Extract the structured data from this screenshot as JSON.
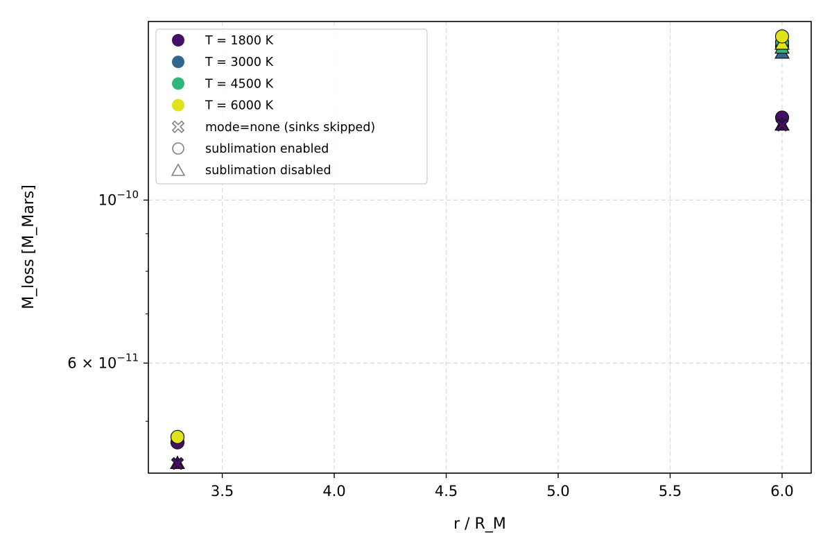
{
  "chart_data": {
    "type": "scatter",
    "xlabel": "r / R_M",
    "ylabel": "M_loss [M_Mars]",
    "xlim": [
      3.17,
      6.13
    ],
    "ylim": [
      4.25e-11,
      1.75e-10
    ],
    "yscale": "log",
    "grid": true,
    "legend_position": "top-left",
    "x_ticks": [
      {
        "value": 3.5,
        "label": "3.5"
      },
      {
        "value": 4.0,
        "label": "4.0"
      },
      {
        "value": 4.5,
        "label": "4.5"
      },
      {
        "value": 5.0,
        "label": "5.0"
      },
      {
        "value": 5.5,
        "label": "5.5"
      },
      {
        "value": 6.0,
        "label": "6.0"
      }
    ],
    "y_major_ticks": [
      {
        "value": 1e-10,
        "base": "10",
        "exp": "−10",
        "mantissa": ""
      },
      {
        "value": 6e-11,
        "base": "10",
        "exp": "−11",
        "mantissa": "6 × "
      }
    ],
    "y_minor_ticks": [
      5e-11,
      7e-11,
      8e-11,
      9e-11
    ],
    "temperature_colors": {
      "T = 1800 K": "#440f67",
      "T = 3000 K": "#31678e",
      "T = 4500 K": "#31b57a",
      "T = 6000 K": "#e0e31a"
    },
    "series": [
      {
        "name": "T = 1800 K",
        "color": "#440f67",
        "marker": "circle",
        "x": [
          3.3,
          6.0
        ],
        "y": [
          4.68e-11,
          1.295e-10
        ]
      },
      {
        "name": "T = 1800 K",
        "color": "#440f67",
        "marker": "triangle",
        "x": [
          3.3,
          6.0
        ],
        "y": [
          4.38e-11,
          1.265e-10
        ]
      },
      {
        "name": "T = 1800 K",
        "color": "#440f67",
        "marker": "x",
        "x": [
          3.3,
          6.0
        ],
        "y": [
          4.38e-11,
          1.265e-10
        ]
      },
      {
        "name": "T = 3000 K",
        "color": "#31678e",
        "marker": "triangle",
        "x": [
          6.0
        ],
        "y": [
          1.585e-10
        ]
      },
      {
        "name": "T = 3000 K",
        "color": "#31678e",
        "marker": "circle",
        "x": [
          6.0
        ],
        "y": [
          1.62e-10
        ]
      },
      {
        "name": "T = 4500 K",
        "color": "#31b57a",
        "marker": "triangle",
        "x": [
          6.0
        ],
        "y": [
          1.61e-10
        ]
      },
      {
        "name": "T = 4500 K",
        "color": "#31b57a",
        "marker": "circle",
        "x": [
          6.0
        ],
        "y": [
          1.64e-10
        ]
      },
      {
        "name": "T = 6000 K",
        "color": "#e0e31a",
        "marker": "triangle",
        "x": [
          6.0
        ],
        "y": [
          1.63e-10
        ]
      },
      {
        "name": "T = 6000 K",
        "color": "#e0e31a",
        "marker": "circle",
        "x": [
          3.3,
          6.0
        ],
        "y": [
          4.76e-11,
          1.67e-10
        ]
      }
    ],
    "legend": [
      {
        "label": "T = 1800 K",
        "marker": "circle-filled",
        "color": "#440f67"
      },
      {
        "label": "T = 3000 K",
        "marker": "circle-filled",
        "color": "#31678e"
      },
      {
        "label": "T = 4500 K",
        "marker": "circle-filled",
        "color": "#31b57a"
      },
      {
        "label": "T = 6000 K",
        "marker": "circle-filled",
        "color": "#e0e31a"
      },
      {
        "label": "mode=none (sinks skipped)",
        "marker": "x-open",
        "color": "#808080"
      },
      {
        "label": "sublimation enabled",
        "marker": "circle-open",
        "color": "#808080"
      },
      {
        "label": "sublimation disabled",
        "marker": "triangle-open",
        "color": "#808080"
      }
    ]
  }
}
